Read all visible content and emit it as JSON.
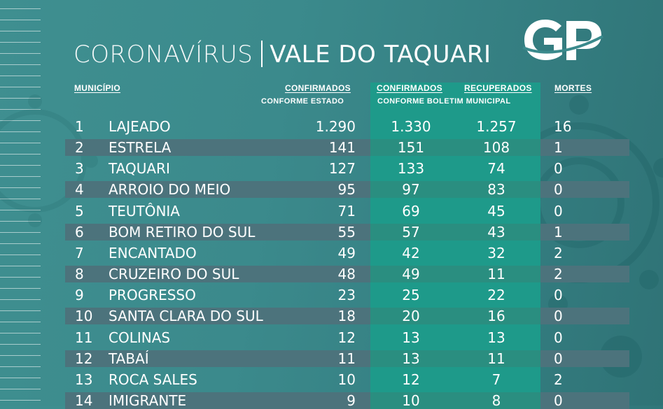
{
  "title": {
    "part1": "CORONAVÍRUS",
    "part2": "VALE DO TAQUARI"
  },
  "logo": {
    "text": "GP"
  },
  "headers": {
    "municipio": "MUNICÍPIO",
    "confirmados_estado": "CONFIRMADOS",
    "confirmados_estado_sub": "CONFORME ESTADO",
    "confirmados_boletim": "CONFIRMADOS",
    "recuperados": "RECUPERADOS",
    "boletim_sub": "CONFORME BOLETIM MUNICIPAL",
    "mortes": "MORTES"
  },
  "colors": {
    "background": "#3b8a8c",
    "green_column": "#1e9a8a",
    "row_band": "#4c737c",
    "text": "#ffffff"
  },
  "rows": [
    {
      "n": "1",
      "name": "LAJEADO",
      "est": "1.290",
      "bol": "1.330",
      "rec": "1.257",
      "mor": "16"
    },
    {
      "n": "2",
      "name": "ESTRELA",
      "est": "141",
      "bol": "151",
      "rec": "108",
      "mor": "1"
    },
    {
      "n": "3",
      "name": "TAQUARI",
      "est": "127",
      "bol": "133",
      "rec": "74",
      "mor": "0"
    },
    {
      "n": "4",
      "name": "ARROIO DO MEIO",
      "est": "95",
      "bol": "97",
      "rec": "83",
      "mor": "0"
    },
    {
      "n": "5",
      "name": "TEUTÔNIA",
      "est": "71",
      "bol": "69",
      "rec": "45",
      "mor": "0"
    },
    {
      "n": "6",
      "name": "BOM RETIRO DO SUL",
      "est": "55",
      "bol": "57",
      "rec": "43",
      "mor": "1"
    },
    {
      "n": "7",
      "name": "ENCANTADO",
      "est": "49",
      "bol": "42",
      "rec": "32",
      "mor": "2"
    },
    {
      "n": "8",
      "name": "CRUZEIRO DO SUL",
      "est": "48",
      "bol": "49",
      "rec": "11",
      "mor": "2"
    },
    {
      "n": "9",
      "name": "PROGRESSO",
      "est": "23",
      "bol": "25",
      "rec": "22",
      "mor": "0"
    },
    {
      "n": "10",
      "name": "SANTA CLARA DO SUL",
      "est": "18",
      "bol": "20",
      "rec": "16",
      "mor": "0"
    },
    {
      "n": "11",
      "name": "COLINAS",
      "est": "12",
      "bol": "13",
      "rec": "13",
      "mor": "0"
    },
    {
      "n": "12",
      "name": "TABAÍ",
      "est": "11",
      "bol": "13",
      "rec": "11",
      "mor": "0"
    },
    {
      "n": "13",
      "name": "ROCA SALES",
      "est": "10",
      "bol": "12",
      "rec": "7",
      "mor": "2"
    },
    {
      "n": "14",
      "name": "IMIGRANTE",
      "est": "9",
      "bol": "10",
      "rec": "8",
      "mor": "0"
    }
  ]
}
